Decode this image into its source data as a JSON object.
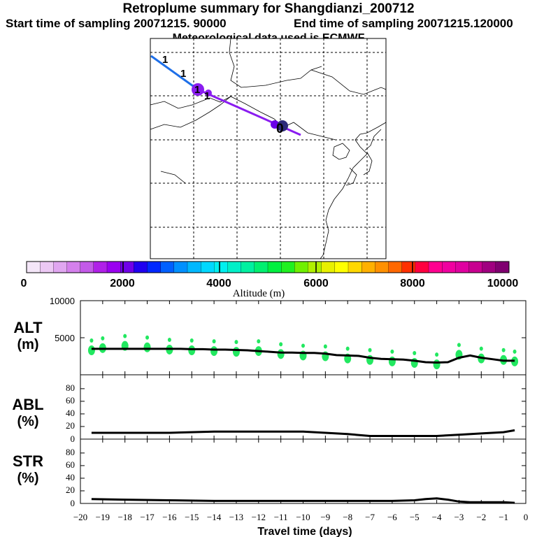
{
  "titles": {
    "main": "Retroplume summary for Shangdianzi_200712",
    "start": "Start time of sampling 20071215. 90000",
    "end": "End time of sampling 20071215.120000",
    "met": "Meteorological data used is ECMWF"
  },
  "colors": {
    "palette": [
      "#f4e6f8",
      "#ecc8f4",
      "#e0a6f0",
      "#d480ec",
      "#c35ae8",
      "#b020e8",
      "#9a00f0",
      "#7000e8",
      "#2000f0",
      "#0028ff",
      "#0060ff",
      "#0090ff",
      "#00b8ff",
      "#00d8ff",
      "#00f0f0",
      "#00f0c8",
      "#00f0a0",
      "#00f070",
      "#00f040",
      "#20f020",
      "#70f000",
      "#b0f000",
      "#e8f000",
      "#ffff00",
      "#ffd800",
      "#ffb000",
      "#ff9000",
      "#ff6800",
      "#ff3000",
      "#ff0040",
      "#ff0090",
      "#f000a0",
      "#e000a0",
      "#c80090",
      "#a00080",
      "#800070"
    ],
    "track_blue": "#1e6fe8",
    "track_purple": "#8a1cf0",
    "alt_dots": "#22e860"
  },
  "chart_data": [
    {
      "type": "map",
      "name": "retroplume-map",
      "track": [
        {
          "label": "1",
          "color": "blue"
        },
        {
          "label": "1",
          "color": "blue"
        },
        {
          "label": "1",
          "color": "purple"
        },
        {
          "label": "1",
          "color": "purple"
        },
        {
          "label": "0",
          "color": "purple"
        }
      ]
    },
    {
      "type": "colorbar",
      "title": "Altitude (m)",
      "range": [
        0,
        10000
      ],
      "tick_labels": [
        "0",
        "2000",
        "4000",
        "6000",
        "8000",
        "10000"
      ]
    },
    {
      "type": "line",
      "panel": "ALT",
      "ylabel": "ALT\n(m)",
      "ylabel_lines": [
        "ALT",
        "(m)"
      ],
      "ylim": [
        0,
        10000
      ],
      "ytick_labels": [
        "10000",
        "5000"
      ],
      "x": [
        -19.5,
        -19,
        -18.5,
        -18,
        -17.5,
        -17,
        -16.5,
        -16,
        -15.5,
        -15,
        -14.5,
        -14,
        -13.5,
        -13,
        -12.5,
        -12,
        -11.5,
        -11,
        -10.5,
        -10,
        -9.5,
        -9,
        -8.5,
        -8,
        -7.5,
        -7,
        -6.5,
        -6,
        -5.5,
        -5,
        -4.5,
        -4,
        -3.5,
        -3,
        -2.5,
        -2,
        -1.5,
        -1,
        -0.5
      ],
      "values": [
        3500,
        3500,
        3500,
        3500,
        3500,
        3500,
        3500,
        3500,
        3500,
        3450,
        3450,
        3400,
        3400,
        3350,
        3300,
        3200,
        3100,
        3000,
        3000,
        2950,
        2950,
        2850,
        2650,
        2600,
        2550,
        2300,
        2150,
        2100,
        2050,
        1900,
        1700,
        1650,
        1700,
        2300,
        2600,
        2300,
        2100,
        1900,
        1900
      ],
      "scatter_x": [
        -19.5,
        -19,
        -18,
        -17,
        -16,
        -15,
        -14,
        -13,
        -12,
        -11,
        -10,
        -9,
        -8,
        -7,
        -6,
        -5,
        -4,
        -3,
        -2,
        -1,
        -0.5
      ],
      "scatter_y": [
        3300,
        3600,
        3900,
        3700,
        3400,
        3300,
        3200,
        3100,
        3200,
        2800,
        2600,
        2500,
        2200,
        2000,
        1800,
        1600,
        1400,
        2700,
        2200,
        2000,
        1800
      ]
    },
    {
      "type": "line",
      "panel": "ABL",
      "ylabel_lines": [
        "ABL",
        "(%)"
      ],
      "ylim": [
        0,
        100
      ],
      "ytick_labels": [
        "80",
        "60",
        "40",
        "20",
        "0"
      ],
      "x": [
        -19.5,
        -18,
        -16,
        -14,
        -12,
        -10,
        -9,
        -8,
        -7,
        -6,
        -5,
        -4,
        -3,
        -2,
        -1,
        -0.5
      ],
      "values": [
        10,
        10,
        10,
        12,
        12,
        12,
        10,
        8,
        5,
        5,
        5,
        5,
        7,
        9,
        11,
        14
      ]
    },
    {
      "type": "line",
      "panel": "STR",
      "ylabel_lines": [
        "STR",
        "(%)"
      ],
      "ylim": [
        0,
        100
      ],
      "ytick_labels": [
        "80",
        "60",
        "40",
        "20",
        "0"
      ],
      "x": [
        -19.5,
        -18,
        -16,
        -14,
        -12,
        -10,
        -8,
        -6,
        -5,
        -4.5,
        -4,
        -3.5,
        -3,
        -2.5,
        -2,
        -1,
        -0.5
      ],
      "values": [
        7,
        6,
        5,
        4,
        4,
        4,
        4,
        4,
        5,
        7,
        8,
        6,
        3,
        2,
        2,
        2,
        1
      ]
    },
    {
      "type": "axis",
      "xlabel": "Travel time (days)",
      "xlim": [
        -20,
        0
      ],
      "xtick_labels": [
        "−20",
        "−19",
        "−18",
        "−17",
        "−16",
        "−15",
        "−14",
        "−13",
        "−12",
        "−11",
        "−10",
        "−9",
        "−8",
        "−7",
        "−6",
        "−5",
        "−4",
        "−3",
        "−2",
        "−1",
        "0"
      ]
    }
  ]
}
